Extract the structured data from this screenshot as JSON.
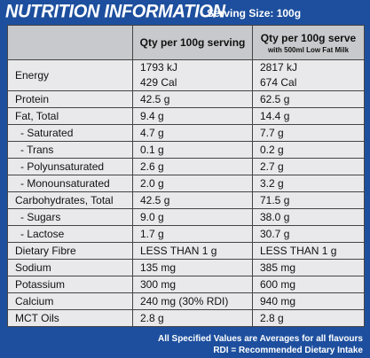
{
  "header": {
    "title": "NUTRITION INFORMATION",
    "serving": "Serving Size: 100g"
  },
  "table": {
    "columns": [
      "Qty per 100g serving",
      "Qty per 100g serve"
    ],
    "column_note": "with 500ml Low Fat Milk",
    "rows": [
      [
        [
          "Energy"
        ],
        [
          "1793 kJ",
          "429 Cal"
        ],
        [
          "2817 kJ",
          "674 Cal"
        ]
      ],
      [
        [
          "Protein"
        ],
        [
          "42.5 g"
        ],
        [
          "62.5 g"
        ]
      ],
      [
        [
          "Fat,  Total"
        ],
        [
          "9.4 g"
        ],
        [
          "14.4 g"
        ]
      ],
      [
        [
          "- Saturated"
        ],
        [
          "4.7 g"
        ],
        [
          "7.7 g"
        ]
      ],
      [
        [
          "- Trans"
        ],
        [
          "0.1 g"
        ],
        [
          "0.2 g"
        ]
      ],
      [
        [
          "- Polyunsaturated"
        ],
        [
          "2.6 g"
        ],
        [
          "2.7 g"
        ]
      ],
      [
        [
          "- Monounsaturated"
        ],
        [
          "2.0 g"
        ],
        [
          "3.2 g"
        ]
      ],
      [
        [
          "Carbohydrates,  Total"
        ],
        [
          "42.5 g"
        ],
        [
          "71.5 g"
        ]
      ],
      [
        [
          "- Sugars"
        ],
        [
          "9.0 g"
        ],
        [
          "38.0 g"
        ]
      ],
      [
        [
          "- Lactose"
        ],
        [
          "1.7 g"
        ],
        [
          "30.7 g"
        ]
      ],
      [
        [
          "Dietary Fibre"
        ],
        [
          "LESS THAN 1 g"
        ],
        [
          "LESS THAN 1 g"
        ]
      ],
      [
        [
          "Sodium"
        ],
        [
          "135 mg"
        ],
        [
          "385 mg"
        ]
      ],
      [
        [
          "Potassium"
        ],
        [
          "300 mg"
        ],
        [
          "600 mg"
        ]
      ],
      [
        [
          "Calcium"
        ],
        [
          "240 mg (30% RDI)"
        ],
        [
          "940 mg"
        ]
      ],
      [
        [
          "MCT Oils"
        ],
        [
          "2.8 g"
        ],
        [
          "2.8 g"
        ]
      ]
    ]
  },
  "footer": {
    "lines": [
      "All Specified Values are Averages for all flavours",
      "RDI = Recommended Dietary Intake"
    ]
  }
}
